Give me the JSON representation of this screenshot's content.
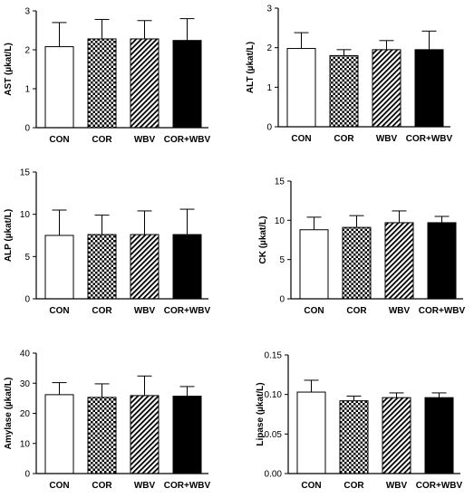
{
  "chart_data": [
    {
      "type": "bar",
      "ylabel": "AST (µkat/L)",
      "categories": [
        "CON",
        "COR",
        "WBV",
        "COR+WBV"
      ],
      "values": [
        2.08,
        2.28,
        2.28,
        2.24
      ],
      "errors": [
        0.62,
        0.5,
        0.47,
        0.56
      ],
      "ylim": [
        0,
        3
      ],
      "yticks": [
        "0",
        "1",
        "2",
        "3"
      ]
    },
    {
      "type": "bar",
      "ylabel": "ALT (µkat/L)",
      "categories": [
        "CON",
        "COR",
        "WBV",
        "COR+WBV"
      ],
      "values": [
        1.98,
        1.8,
        1.95,
        1.95
      ],
      "errors": [
        0.4,
        0.15,
        0.23,
        0.47
      ],
      "ylim": [
        0,
        3
      ],
      "yticks": [
        "0",
        "1",
        "2",
        "3"
      ]
    },
    {
      "type": "bar",
      "ylabel": "ALP (µkat/L)",
      "categories": [
        "CON",
        "COR",
        "WBV",
        "COR+WBV"
      ],
      "values": [
        7.5,
        7.6,
        7.6,
        7.6
      ],
      "errors": [
        3.0,
        2.3,
        2.8,
        3.0
      ],
      "ylim": [
        0,
        15
      ],
      "yticks": [
        "0",
        "5",
        "10",
        "15"
      ]
    },
    {
      "type": "bar",
      "ylabel": "CK (µkat/L)",
      "categories": [
        "CON",
        "COR",
        "WBV",
        "COR+WBV"
      ],
      "values": [
        8.8,
        9.1,
        9.7,
        9.7
      ],
      "errors": [
        1.6,
        1.5,
        1.5,
        0.8
      ],
      "ylim": [
        0,
        15
      ],
      "yticks": [
        "0",
        "5",
        "10",
        "15"
      ]
    },
    {
      "type": "bar",
      "ylabel": "Amylase (µkat/L)",
      "categories": [
        "CON",
        "COR",
        "WBV",
        "COR+WBV"
      ],
      "values": [
        26.2,
        25.3,
        25.9,
        25.7
      ],
      "errors": [
        4.0,
        4.5,
        6.5,
        3.2
      ],
      "ylim": [
        0,
        40
      ],
      "yticks": [
        "0",
        "10",
        "20",
        "30",
        "40"
      ]
    },
    {
      "type": "bar",
      "ylabel": "Lipase (µkat/L)",
      "categories": [
        "CON",
        "COR",
        "WBV",
        "COR+WBV"
      ],
      "values": [
        0.103,
        0.092,
        0.096,
        0.096
      ],
      "errors": [
        0.015,
        0.006,
        0.006,
        0.006
      ],
      "ylim": [
        0,
        0.15
      ],
      "yticks": [
        "0.00",
        "0.05",
        "0.10",
        "0.15"
      ]
    }
  ],
  "fills": [
    "white",
    "checker",
    "hatch",
    "black"
  ]
}
